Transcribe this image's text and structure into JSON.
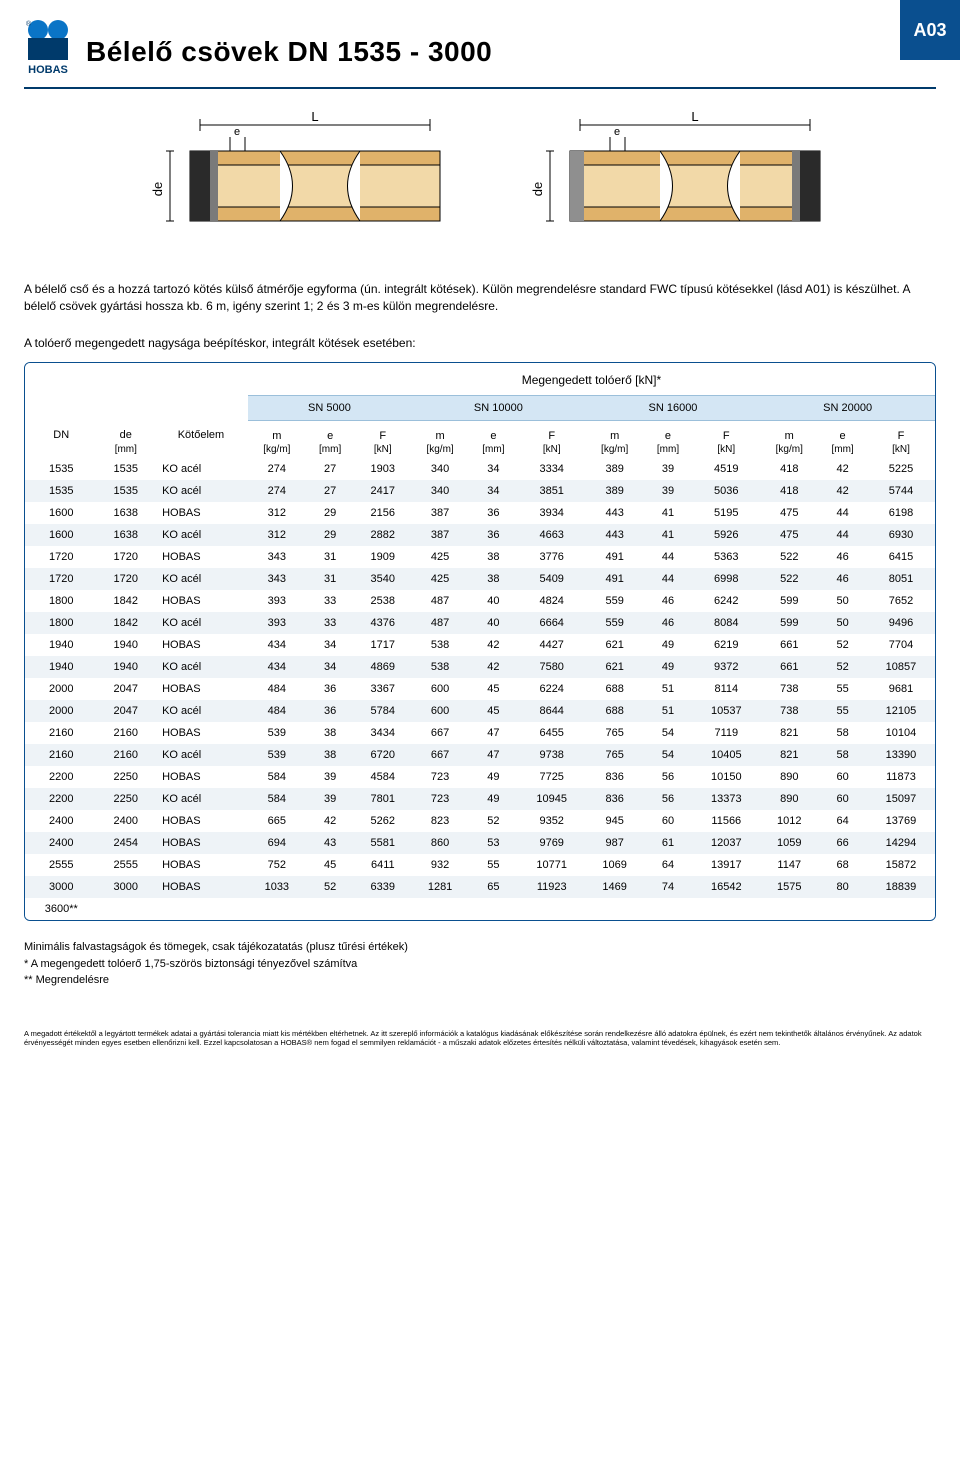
{
  "badge": "A03",
  "title": "Bélelő csövek DN 1535 - 3000",
  "logo": {
    "top_color": "#0a74c6",
    "bottom_color": "#003a6b",
    "text": "HOBAS"
  },
  "diagram": {
    "pipe_fill": "#e0b26a",
    "pipe_fill_light": "#f2d9a8",
    "seal_color": "#2a2a2a",
    "outline": "#000000",
    "label_L": "L",
    "label_e": "e",
    "label_de": "de"
  },
  "intro": {
    "p1": "A bélelő cső és a hozzá tartozó kötés külső átmérője egyforma (ún. integrált kötések). Külön megrendelésre standard FWC típusú kötésekkel (lásd A01) is készülhet. A bélelő csövek gyártási hossza  kb. 6 m, igény szerint 1; 2 és 3 m-es külön megrendelésre.",
    "p2": "A tolóerő megengedett nagysága beépítéskor, integrált kötések esetében:"
  },
  "table": {
    "super_header": "Megengedett tolóerő [kN]*",
    "sn_groups": [
      "SN 5000",
      "SN 10000",
      "SN 16000",
      "SN 20000"
    ],
    "lead_cols": [
      {
        "label": "DN",
        "unit": ""
      },
      {
        "label": "de",
        "unit": "[mm]"
      },
      {
        "label": "Kötőelem",
        "unit": ""
      }
    ],
    "group_cols": [
      {
        "label": "m",
        "unit": "[kg/m]"
      },
      {
        "label": "e",
        "unit": "[mm]"
      },
      {
        "label": "F",
        "unit": "[kN]"
      }
    ],
    "rows": [
      [
        "1535",
        "1535",
        "KO acél",
        "274",
        "27",
        "1903",
        "340",
        "34",
        "3334",
        "389",
        "39",
        "4519",
        "418",
        "42",
        "5225"
      ],
      [
        "1535",
        "1535",
        "KO acél",
        "274",
        "27",
        "2417",
        "340",
        "34",
        "3851",
        "389",
        "39",
        "5036",
        "418",
        "42",
        "5744"
      ],
      [
        "1600",
        "1638",
        "HOBAS",
        "312",
        "29",
        "2156",
        "387",
        "36",
        "3934",
        "443",
        "41",
        "5195",
        "475",
        "44",
        "6198"
      ],
      [
        "1600",
        "1638",
        "KO acél",
        "312",
        "29",
        "2882",
        "387",
        "36",
        "4663",
        "443",
        "41",
        "5926",
        "475",
        "44",
        "6930"
      ],
      [
        "1720",
        "1720",
        "HOBAS",
        "343",
        "31",
        "1909",
        "425",
        "38",
        "3776",
        "491",
        "44",
        "5363",
        "522",
        "46",
        "6415"
      ],
      [
        "1720",
        "1720",
        "KO acél",
        "343",
        "31",
        "3540",
        "425",
        "38",
        "5409",
        "491",
        "44",
        "6998",
        "522",
        "46",
        "8051"
      ],
      [
        "1800",
        "1842",
        "HOBAS",
        "393",
        "33",
        "2538",
        "487",
        "40",
        "4824",
        "559",
        "46",
        "6242",
        "599",
        "50",
        "7652"
      ],
      [
        "1800",
        "1842",
        "KO acél",
        "393",
        "33",
        "4376",
        "487",
        "40",
        "6664",
        "559",
        "46",
        "8084",
        "599",
        "50",
        "9496"
      ],
      [
        "1940",
        "1940",
        "HOBAS",
        "434",
        "34",
        "1717",
        "538",
        "42",
        "4427",
        "621",
        "49",
        "6219",
        "661",
        "52",
        "7704"
      ],
      [
        "1940",
        "1940",
        "KO acél",
        "434",
        "34",
        "4869",
        "538",
        "42",
        "7580",
        "621",
        "49",
        "9372",
        "661",
        "52",
        "10857"
      ],
      [
        "2000",
        "2047",
        "HOBAS",
        "484",
        "36",
        "3367",
        "600",
        "45",
        "6224",
        "688",
        "51",
        "8114",
        "738",
        "55",
        "9681"
      ],
      [
        "2000",
        "2047",
        "KO acél",
        "484",
        "36",
        "5784",
        "600",
        "45",
        "8644",
        "688",
        "51",
        "10537",
        "738",
        "55",
        "12105"
      ],
      [
        "2160",
        "2160",
        "HOBAS",
        "539",
        "38",
        "3434",
        "667",
        "47",
        "6455",
        "765",
        "54",
        "7119",
        "821",
        "58",
        "10104"
      ],
      [
        "2160",
        "2160",
        "KO acél",
        "539",
        "38",
        "6720",
        "667",
        "47",
        "9738",
        "765",
        "54",
        "10405",
        "821",
        "58",
        "13390"
      ],
      [
        "2200",
        "2250",
        "HOBAS",
        "584",
        "39",
        "4584",
        "723",
        "49",
        "7725",
        "836",
        "56",
        "10150",
        "890",
        "60",
        "11873"
      ],
      [
        "2200",
        "2250",
        "KO acél",
        "584",
        "39",
        "7801",
        "723",
        "49",
        "10945",
        "836",
        "56",
        "13373",
        "890",
        "60",
        "15097"
      ],
      [
        "2400",
        "2400",
        "HOBAS",
        "665",
        "42",
        "5262",
        "823",
        "52",
        "9352",
        "945",
        "60",
        "11566",
        "1012",
        "64",
        "13769"
      ],
      [
        "2400",
        "2454",
        "HOBAS",
        "694",
        "43",
        "5581",
        "860",
        "53",
        "9769",
        "987",
        "61",
        "12037",
        "1059",
        "66",
        "14294"
      ],
      [
        "2555",
        "2555",
        "HOBAS",
        "752",
        "45",
        "6411",
        "932",
        "55",
        "10771",
        "1069",
        "64",
        "13917",
        "1147",
        "68",
        "15872"
      ],
      [
        "3000",
        "3000",
        "HOBAS",
        "1033",
        "52",
        "6339",
        "1281",
        "65",
        "11923",
        "1469",
        "74",
        "16542",
        "1575",
        "80",
        "18839"
      ],
      [
        "3600**",
        "",
        "",
        "",
        "",
        "",
        "",
        "",
        "",
        "",
        "",
        "",
        "",
        "",
        ""
      ]
    ]
  },
  "footnotes": {
    "l1": "Minimális falvastagságok és tömegek, csak tájékozatatás (plusz tűrési értékek)",
    "l2": "* A megengedett tolóerő 1,75-szörös biztonsági tényezővel  számítva",
    "l3": "** Megrendelésre"
  },
  "disclaimer": "A megadott értékektől a legyártott termékek adatai a gyártási tolerancia miatt kis mértékben eltérhetnek. Az itt szereplő információk a katalógus kiadásának előkészítése során rendelkezésre álló adatokra épülnek, és ezért nem tekinthetők általános érvényűnek. Az adatok érvényességét minden egyes esetben ellenőrizni kell. Ezzel kapcsolatosan a HOBAS® nem fogad el semmilyen reklamációt - a műszaki adatok előzetes értesítés nélküli változtatása, valamint tévedések, kihagyások esetén sem."
}
